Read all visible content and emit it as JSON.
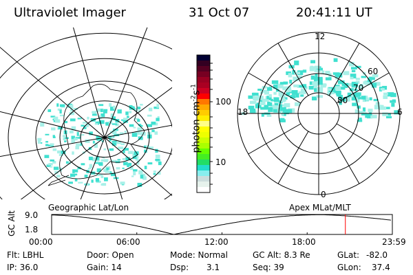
{
  "header": {
    "instrument": "Ultraviolet Imager",
    "date": "31 Oct 07",
    "time": "20:41:11 UT"
  },
  "colorbar": {
    "label": "photon cm",
    "sup1": "-2",
    "unit2": "s",
    "sup2": "-1",
    "ticks": [
      "100",
      "10"
    ],
    "colors": [
      "#000033",
      "#330022",
      "#550022",
      "#770022",
      "#990022",
      "#aa0022",
      "#cc0022",
      "#ff0000",
      "#ff7700",
      "#ffaa00",
      "#ffcc00",
      "#ffee00",
      "#ffff88",
      "#ffff00",
      "#eeff00",
      "#ccff00",
      "#aaff00",
      "#66ff00",
      "#44ee22",
      "#22dd66",
      "#22ddcc",
      "#88eeee",
      "#ccdddd",
      "#e6f2ec",
      "#ffffff"
    ]
  },
  "right_plot": {
    "mlt_labels": [
      "12",
      "18",
      "6",
      "0"
    ],
    "mlat_labels": [
      "60",
      "70",
      "80"
    ]
  },
  "left_plot": {
    "label": "Geographic Lat/Lon"
  },
  "projection_label": "Apex MLat/MLT",
  "altitude": {
    "ylabel": "GC Alt",
    "yticks": [
      "9.0",
      "1.8"
    ],
    "xticks": [
      "00:00",
      "06:00",
      "12:00",
      "18:00",
      "23:59"
    ],
    "current_time_hours": 20.69,
    "current_marker_color": "#ff0000"
  },
  "status": {
    "flt": "Flt: LBHL",
    "ip": "IP: 36.0",
    "door": "Door: Open",
    "gain": "Gain: 14",
    "mode": "Mode: Normal",
    "dsp_label": "Dsp:",
    "dsp_value": "3.1",
    "gcalt": "GC Alt: 8.3 Re",
    "seq": "Seq: 39",
    "glat_label": "GLat:",
    "glat": "-82.0",
    "glon_label": "GLon:",
    "glon": "37.4"
  },
  "colors": {
    "aurora": "#40e0d0",
    "aurora_light": "#a8f0e8"
  }
}
